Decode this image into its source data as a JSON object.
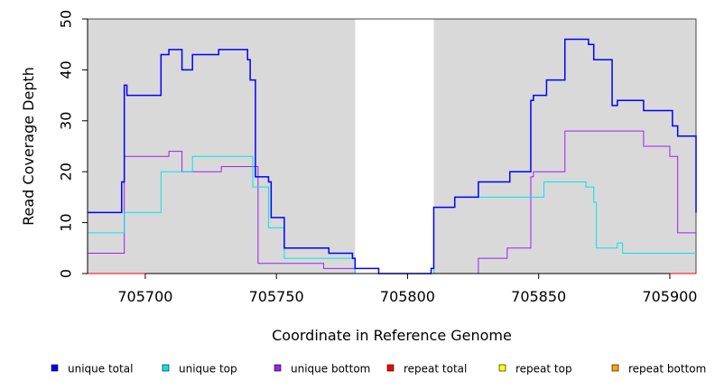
{
  "chart_data": {
    "type": "line",
    "xlabel": "Coordinate in Reference Genome",
    "ylabel": "Read Coverage Depth",
    "xlim": [
      705678,
      705910
    ],
    "ylim": [
      0,
      50
    ],
    "x_ticks": [
      705700,
      705750,
      705800,
      705850,
      705900
    ],
    "y_ticks": [
      0,
      10,
      20,
      30,
      40,
      50
    ],
    "shaded_regions": [
      [
        705678,
        705780
      ],
      [
        705810,
        705910
      ]
    ],
    "shade_color": "#d9d9d9",
    "legend_position": "bottom",
    "series": [
      {
        "name": "unique total",
        "color": "#0000ff",
        "x": [
          705678,
          705691,
          705692,
          705693,
          705694,
          705706,
          705709,
          705714,
          705718,
          705728,
          705739,
          705740,
          705742,
          705747,
          705748,
          705753,
          705770,
          705779,
          705780,
          705789,
          705809,
          705810,
          705818,
          705827,
          705839,
          705847,
          705848,
          705853,
          705860,
          705869,
          705871,
          705878,
          705880,
          705890,
          705901,
          705903,
          705910
        ],
        "y": [
          12,
          18,
          37,
          35,
          35,
          43,
          44,
          40,
          43,
          44,
          42,
          38,
          19,
          18,
          11,
          5,
          4,
          3,
          1,
          0,
          1,
          13,
          15,
          18,
          20,
          34,
          35,
          38,
          46,
          45,
          42,
          33,
          34,
          32,
          29,
          27,
          12
        ]
      },
      {
        "name": "unique top",
        "color": "#00e5ee",
        "x": [
          705678,
          705692,
          705706,
          705718,
          705741,
          705747,
          705753,
          705780,
          705809,
          705810,
          705818,
          705852,
          705868,
          705871,
          705872,
          705880,
          705882,
          705910
        ],
        "y": [
          8,
          12,
          20,
          23,
          17,
          9,
          3,
          0,
          0,
          13,
          15,
          18,
          17,
          14,
          5,
          6,
          4,
          4
        ]
      },
      {
        "name": "unique bottom",
        "color": "#a020f0",
        "x": [
          705678,
          705692,
          705709,
          705714,
          705729,
          705743,
          705768,
          705780,
          705827,
          705838,
          705847,
          705848,
          705860,
          705890,
          705900,
          705903,
          705910
        ],
        "y": [
          4,
          23,
          24,
          20,
          21,
          2,
          1,
          0,
          3,
          5,
          19,
          20,
          28,
          25,
          23,
          8,
          8
        ]
      },
      {
        "name": "repeat total",
        "color": "#ff0000",
        "x": [
          705678,
          705910
        ],
        "y": [
          0,
          0
        ]
      },
      {
        "name": "repeat top",
        "color": "#ffff00",
        "x": [
          705678,
          705910
        ],
        "y": [
          0,
          0
        ]
      },
      {
        "name": "repeat bottom",
        "color": "#ffa500",
        "x": [
          705678,
          705910
        ],
        "y": [
          0,
          0
        ]
      }
    ]
  }
}
